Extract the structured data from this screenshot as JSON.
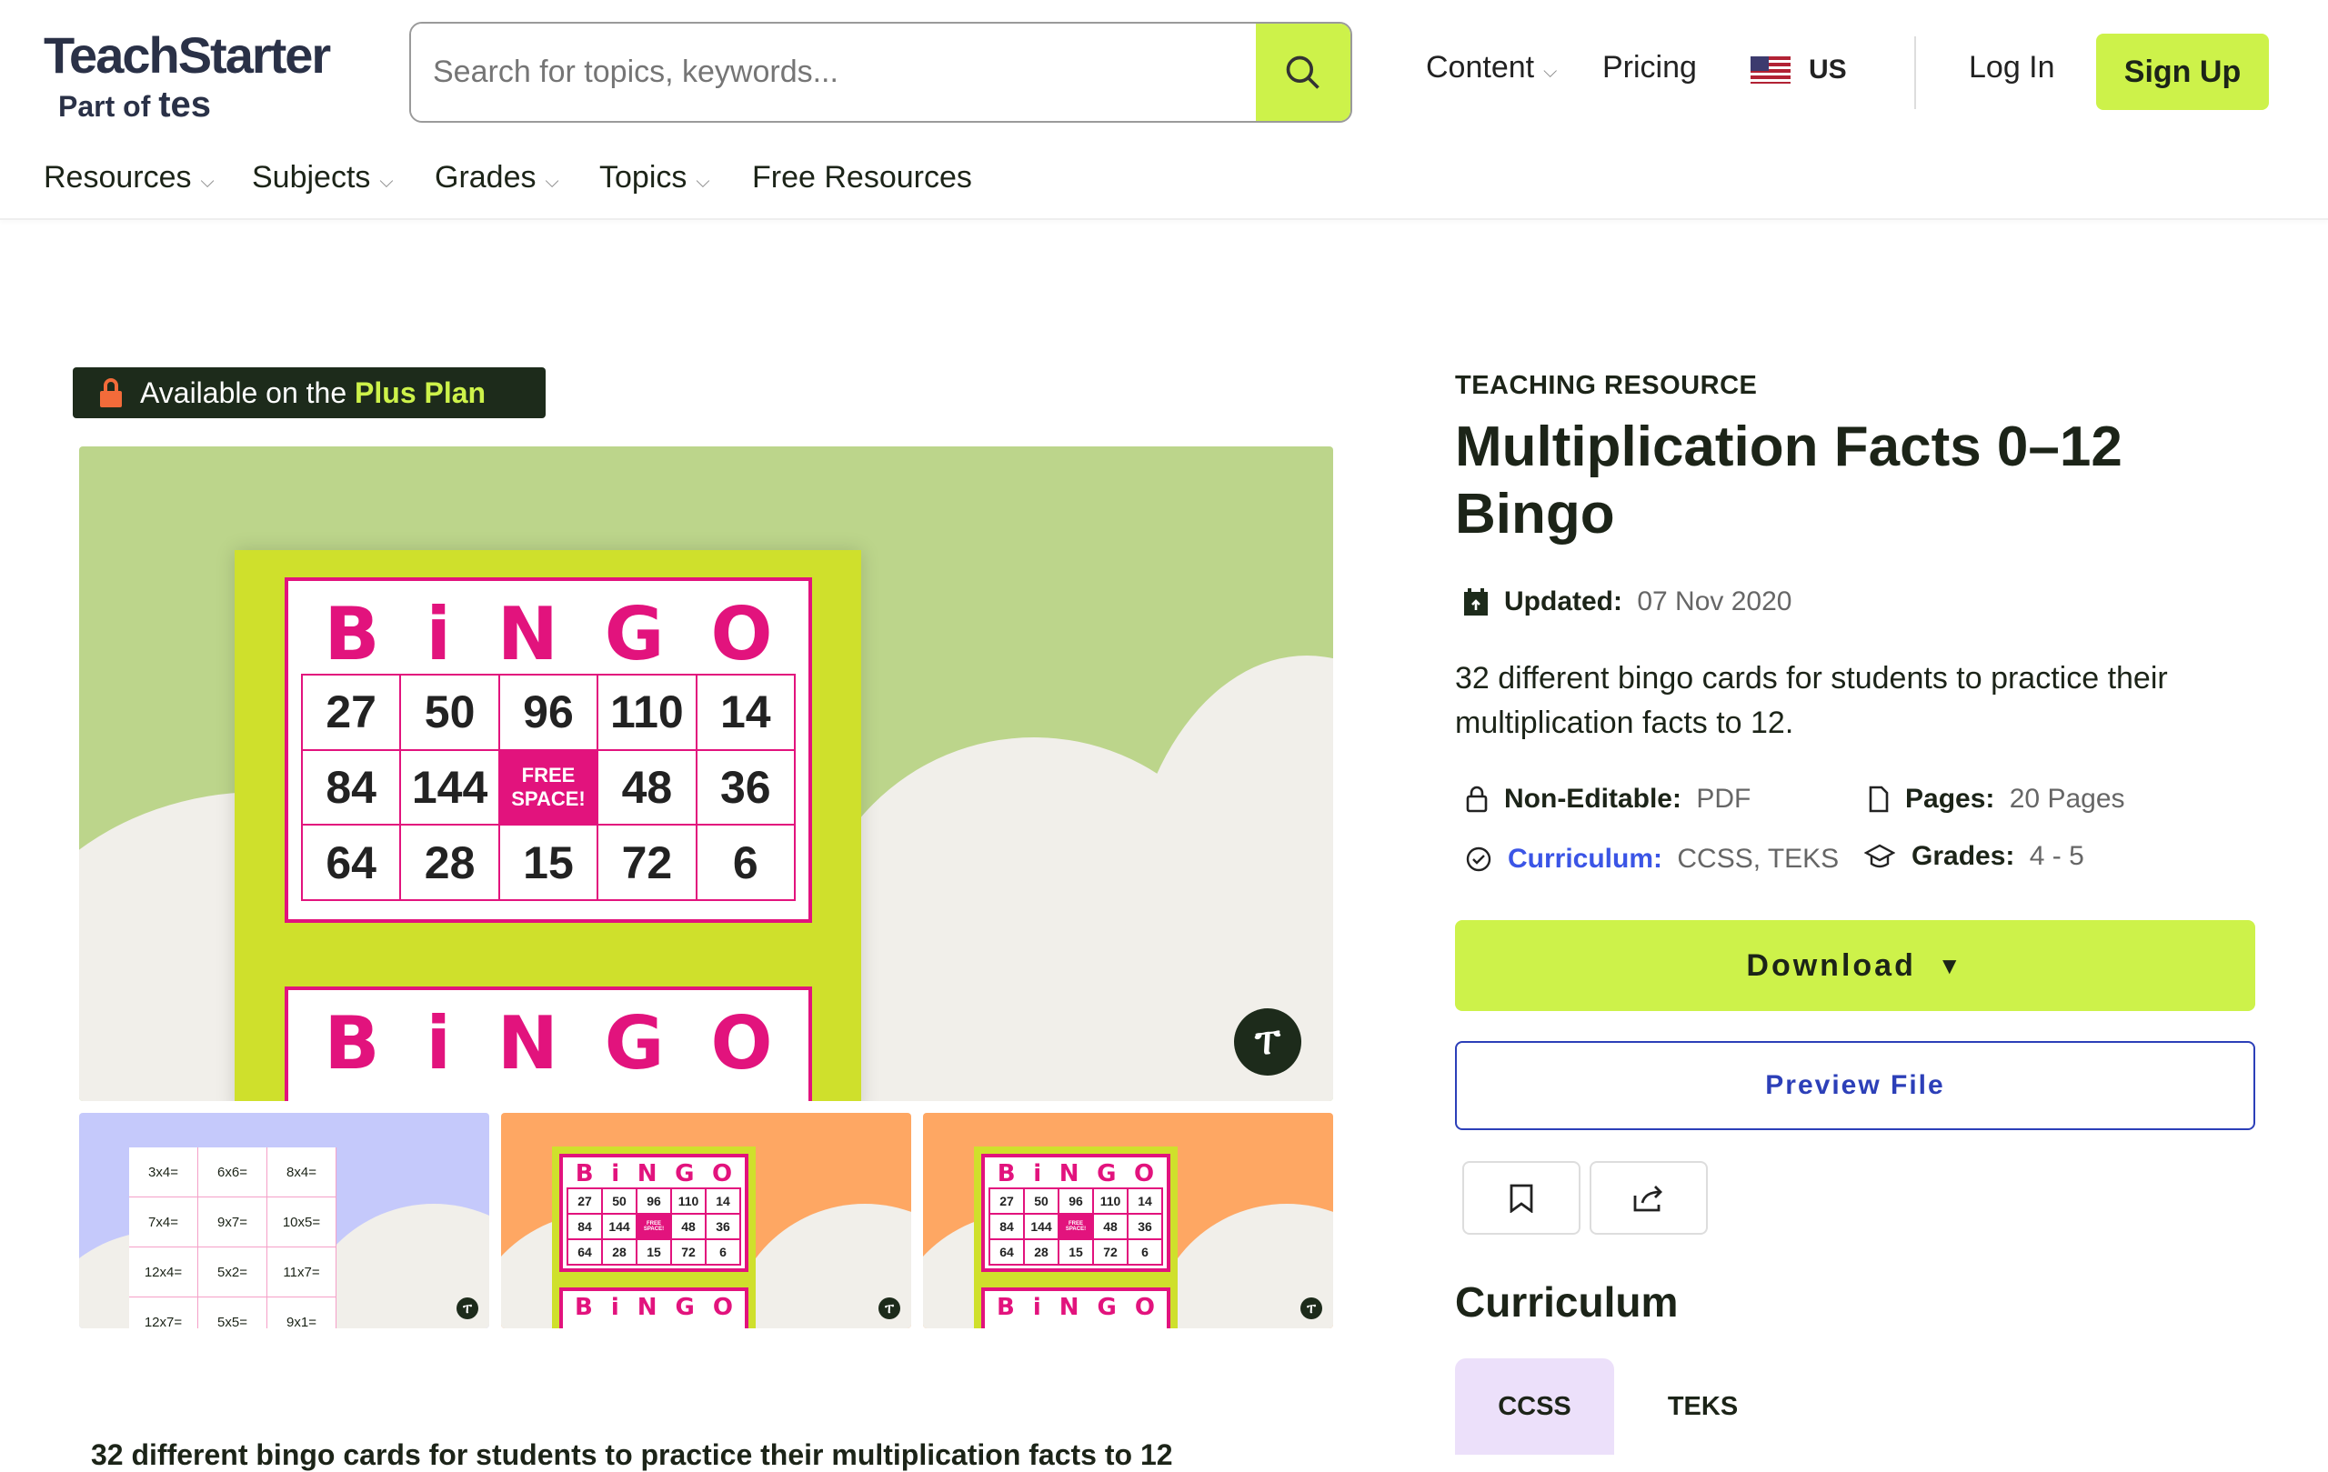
{
  "header": {
    "logo_main": "TeachStarter",
    "logo_sub": "Part of",
    "logo_sub_brand": "tes",
    "search_placeholder": "Search for topics, keywords...",
    "content": "Content",
    "pricing": "Pricing",
    "region": "US",
    "login": "Log In",
    "signup": "Sign Up",
    "accent": "#cdf24a"
  },
  "nav": [
    {
      "label": "Resources"
    },
    {
      "label": "Subjects"
    },
    {
      "label": "Grades"
    },
    {
      "label": "Topics"
    },
    {
      "label": "Free Resources"
    }
  ],
  "badge": {
    "prefix": "Available on the",
    "plan": "Plus Plan"
  },
  "preview": {
    "word": [
      "B",
      "i",
      "N",
      "G",
      "O"
    ],
    "numbers": [
      "27",
      "50",
      "96",
      "110",
      "14",
      "84",
      "144",
      "FREE SPACE!",
      "48",
      "36",
      "64",
      "28",
      "15",
      "72",
      "6"
    ],
    "facts": [
      "3x4=",
      "6x6=",
      "8x4=",
      "7x4=",
      "9x7=",
      "10x5=",
      "12x4=",
      "5x2=",
      "11x7=",
      "12x7=",
      "5x5=",
      "9x1="
    ]
  },
  "resource": {
    "eyebrow": "TEACHING RESOURCE",
    "title": "Multiplication Facts 0–12 Bingo",
    "updated_label": "Updated:",
    "updated_value": "07 Nov 2020",
    "description": "32 different bingo cards for students to practice their multiplication facts to 12.",
    "editable_label": "Non-Editable:",
    "editable_value": "PDF",
    "pages_label": "Pages:",
    "pages_value": "20 Pages",
    "curriculum_label": "Curriculum:",
    "curriculum_value": "CCSS, TEKS",
    "grades_label": "Grades:",
    "grades_value": "4 - 5"
  },
  "actions": {
    "download": "Download",
    "preview": "Preview File"
  },
  "curriculum": {
    "heading": "Curriculum",
    "tabs": [
      {
        "label": "CCSS",
        "active": true
      },
      {
        "label": "TEKS",
        "active": false
      }
    ]
  },
  "footer_text": "32 different bingo cards for students to practice their multiplication facts to 12"
}
